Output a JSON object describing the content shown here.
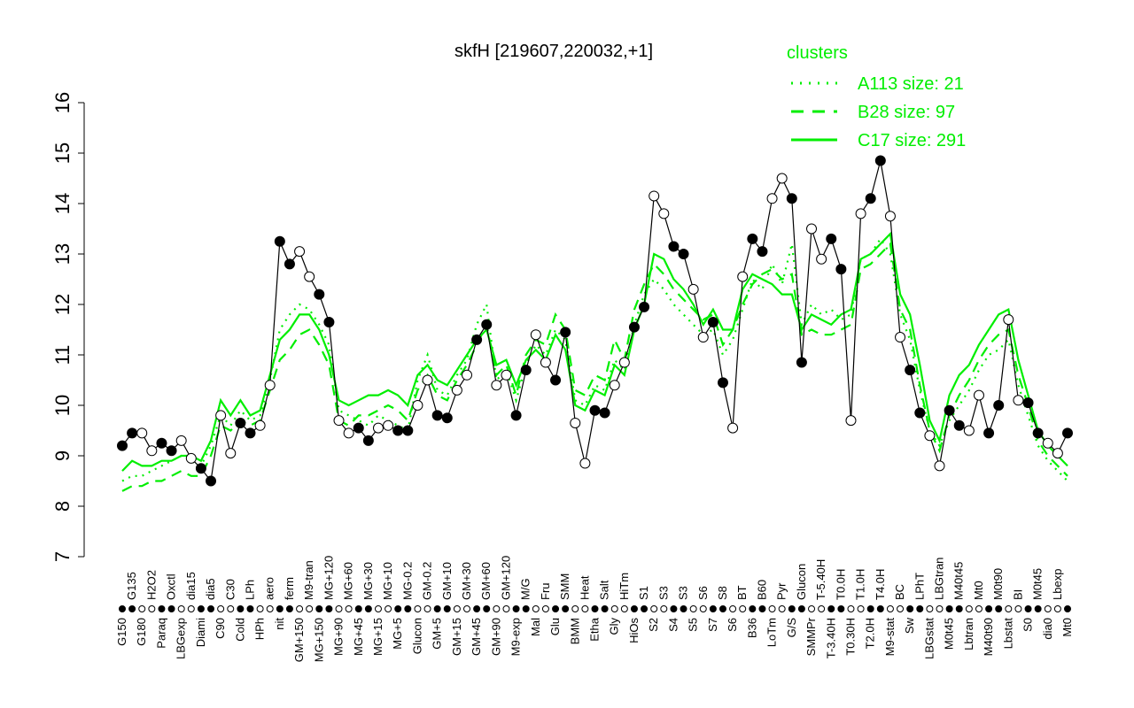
{
  "chart_data": {
    "type": "line",
    "title": "skfH [219607,220032,+1]",
    "xlabel": "",
    "ylabel": "",
    "ylim": [
      7,
      16
    ],
    "yticks": [
      7,
      8,
      9,
      10,
      11,
      12,
      13,
      14,
      15,
      16
    ],
    "grid": false,
    "legend": {
      "title": "clusters",
      "placement": "top-right",
      "entries": [
        "A113 size: 21",
        "B28 size: 97",
        "C17 size: 291"
      ]
    },
    "colors": {
      "data": "#000000",
      "clusters": "#00ee00"
    },
    "categories": [
      "G150",
      "G135",
      "G180",
      "H2O2",
      "Paraq",
      "Oxctl",
      "LBGexp",
      "dia15",
      "Diami",
      "dia5",
      "C90",
      "C30",
      "Cold",
      "LPh",
      "HPh",
      "aero",
      "nit",
      "ferm",
      "GM+150",
      "M9-tran",
      "MG+150",
      "MG+120",
      "MG+90",
      "MG+60",
      "MG+45",
      "MG+30",
      "MG+15",
      "MG+10",
      "MG+5",
      "MG-0.2",
      "Glucon",
      "GM-0.2",
      "GM+5",
      "GM+10",
      "GM+15",
      "GM+30",
      "GM+45",
      "GM+60",
      "GM+90",
      "GM+120",
      "M9-exp",
      "M/G",
      "Mal",
      "Fru",
      "Glu",
      "SMM",
      "BMM",
      "Heat",
      "Etha",
      "Salt",
      "Gly",
      "HiTm",
      "HiOs",
      "S1",
      "S2",
      "S3",
      "S4",
      "S3",
      "S5",
      "S6",
      "S7",
      "S8",
      "S6",
      "BT",
      "B36",
      "B60",
      "LoTm",
      "Pyr",
      "G/S",
      "Glucon",
      "SMMPr",
      "T-5.40H",
      "T-3.40H",
      "T0.0H",
      "T0.30H",
      "T1.0H",
      "T2.0H",
      "T4.0H",
      "M9-stat",
      "BC",
      "Sw",
      "LPhT",
      "LBGstat",
      "LBGtran",
      "M0t45",
      "M40t45",
      "Lbtran",
      "Mt0",
      "M40t90",
      "M0t90",
      "Lbstat",
      "BI",
      "S0",
      "M0t45",
      "dia0",
      "Lbexp",
      "Mt0"
    ],
    "values": [
      9.2,
      9.45,
      9.45,
      9.1,
      9.25,
      9.1,
      9.3,
      8.95,
      8.75,
      8.5,
      9.8,
      9.05,
      9.65,
      9.45,
      9.6,
      10.4,
      13.25,
      12.8,
      13.05,
      12.55,
      12.2,
      11.65,
      9.7,
      9.45,
      9.55,
      9.3,
      9.55,
      9.6,
      9.5,
      9.5,
      10.0,
      10.5,
      9.8,
      9.75,
      10.3,
      10.6,
      11.3,
      11.6,
      10.4,
      10.6,
      9.8,
      10.7,
      11.4,
      10.85,
      10.5,
      11.45,
      9.65,
      8.85,
      9.9,
      9.85,
      10.4,
      10.85,
      11.55,
      11.95,
      14.15,
      13.8,
      13.15,
      13.0,
      12.3,
      11.35,
      11.65,
      10.45,
      9.55,
      12.55,
      13.3,
      13.05,
      14.1,
      14.5,
      14.1,
      10.85,
      13.5,
      12.9,
      13.3,
      12.7,
      9.7,
      13.8,
      14.1,
      14.85,
      13.75,
      11.35,
      10.7,
      9.85,
      9.4,
      8.8,
      9.9,
      9.6,
      9.5,
      10.2,
      9.45,
      10.0,
      11.7,
      10.1,
      10.05,
      9.45,
      9.25,
      9.05,
      9.45
    ],
    "series": [
      {
        "name": "C17 size: 291",
        "style": "solid",
        "values": [
          8.7,
          8.9,
          8.8,
          8.8,
          8.9,
          8.9,
          9.0,
          9.0,
          8.9,
          9.3,
          10.1,
          9.8,
          10.1,
          9.8,
          9.9,
          10.6,
          11.3,
          11.5,
          11.8,
          11.8,
          11.5,
          11.0,
          10.1,
          10.0,
          10.1,
          10.2,
          10.2,
          10.3,
          10.2,
          10.0,
          10.6,
          10.8,
          10.5,
          10.4,
          10.7,
          11.0,
          11.3,
          11.5,
          10.8,
          10.9,
          10.4,
          10.9,
          11.1,
          10.9,
          11.4,
          11.1,
          10.0,
          9.9,
          10.3,
          10.2,
          10.8,
          10.6,
          11.5,
          12.0,
          13.0,
          12.9,
          12.5,
          12.3,
          12.0,
          11.6,
          11.9,
          11.5,
          11.5,
          12.3,
          12.6,
          12.5,
          12.4,
          12.2,
          12.2,
          11.5,
          11.8,
          11.7,
          11.6,
          11.8,
          11.9,
          12.9,
          13.0,
          13.2,
          13.4,
          12.2,
          11.8,
          10.8,
          9.7,
          9.3,
          10.2,
          10.6,
          10.8,
          11.2,
          11.5,
          11.8,
          11.9,
          10.9,
          10.2,
          9.5,
          9.2,
          9.0,
          8.8
        ]
      },
      {
        "name": "B28 size: 97",
        "style": "dashed",
        "values": [
          8.3,
          8.4,
          8.4,
          8.5,
          8.5,
          8.6,
          8.7,
          8.6,
          8.6,
          9.0,
          9.6,
          9.5,
          9.7,
          9.6,
          9.7,
          10.3,
          10.9,
          11.1,
          11.4,
          11.5,
          11.2,
          10.8,
          9.7,
          9.6,
          9.8,
          9.8,
          9.9,
          10.0,
          9.9,
          9.7,
          10.3,
          10.6,
          10.2,
          10.1,
          10.5,
          10.8,
          11.2,
          11.6,
          10.6,
          10.8,
          10.2,
          11.0,
          11.3,
          11.2,
          11.8,
          11.5,
          10.3,
          10.2,
          10.6,
          10.5,
          11.3,
          10.9,
          11.9,
          12.4,
          12.8,
          12.6,
          12.3,
          12.1,
          11.9,
          11.7,
          11.8,
          11.2,
          11.5,
          12.0,
          12.4,
          12.6,
          12.7,
          12.5,
          12.6,
          11.4,
          11.5,
          11.4,
          11.4,
          11.5,
          11.6,
          12.7,
          12.8,
          13.0,
          13.2,
          11.9,
          11.5,
          10.4,
          9.5,
          9.1,
          9.8,
          10.2,
          10.5,
          10.9,
          11.2,
          11.4,
          11.5,
          10.6,
          10.0,
          9.3,
          9.0,
          8.8,
          8.6
        ]
      },
      {
        "name": "A113 size: 21",
        "style": "dotted",
        "values": [
          8.5,
          8.6,
          8.6,
          8.7,
          8.8,
          8.9,
          9.0,
          8.9,
          8.8,
          9.2,
          9.8,
          9.6,
          9.9,
          9.7,
          9.8,
          10.5,
          11.5,
          11.8,
          12.0,
          11.9,
          11.6,
          11.2,
          9.9,
          9.8,
          9.7,
          9.6,
          9.8,
          9.7,
          9.6,
          9.5,
          10.5,
          11.0,
          10.3,
          10.2,
          10.6,
          10.9,
          11.6,
          12.0,
          10.5,
          10.7,
          10.1,
          10.8,
          11.2,
          11.0,
          11.5,
          11.3,
          10.1,
          10.0,
          10.4,
          10.3,
          10.9,
          10.7,
          11.6,
          12.2,
          12.5,
          12.3,
          12.0,
          11.8,
          11.6,
          11.4,
          11.5,
          11.0,
          11.3,
          11.9,
          12.5,
          12.3,
          12.8,
          12.4,
          13.2,
          11.6,
          12.0,
          11.8,
          11.9,
          11.7,
          11.8,
          12.9,
          13.0,
          13.3,
          13.0,
          11.8,
          11.3,
          10.3,
          9.5,
          9.2,
          9.7,
          10.0,
          10.3,
          10.7,
          11.0,
          11.1,
          11.3,
          10.4,
          9.8,
          9.2,
          8.9,
          8.7,
          8.5
        ]
      }
    ]
  }
}
